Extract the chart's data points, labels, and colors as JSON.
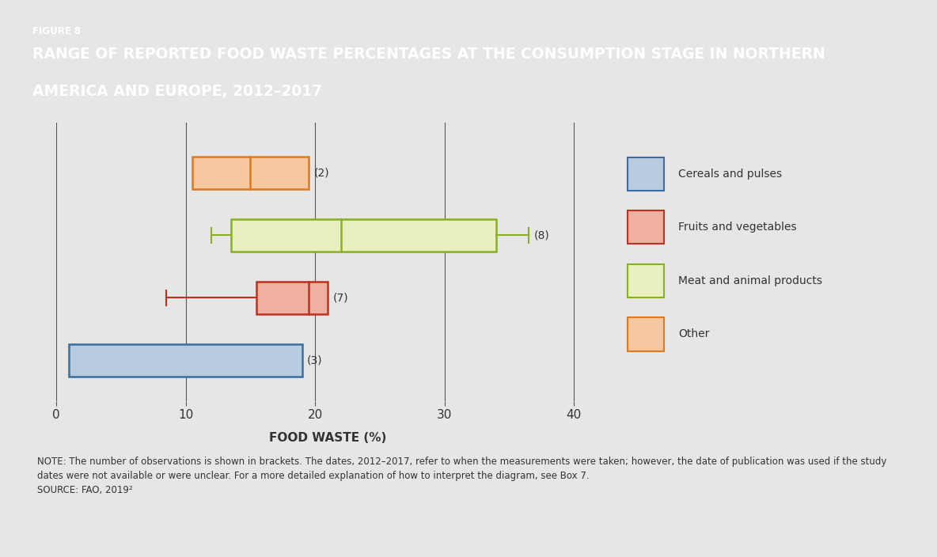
{
  "title_line1": "FIGURE 8",
  "title_line2": "RANGE OF REPORTED FOOD WASTE PERCENTAGES AT THE CONSUMPTION STAGE IN NORTHERN",
  "title_line3": "AMERICA AND EUROPE, 2012–2017",
  "title_bg_color": "#7f7f7f",
  "title_text_color": "#ffffff",
  "bg_color": "#e6e6e6",
  "xlabel": "FOOD WASTE (%)",
  "xlim": [
    0,
    42
  ],
  "xticks": [
    0,
    10,
    20,
    30,
    40
  ],
  "note_text": "NOTE: The number of observations is shown in brackets. The dates, 2012–2017, refer to when the measurements were taken; however, the date of publication was used if the study\ndates were not available or were unclear. For a more detailed explanation of how to interpret the diagram, see Box 7.\nSOURCE: FAO, 2019²",
  "boxes": [
    {
      "label": "Other",
      "y": 4,
      "whisker_min": null,
      "q1": 10.5,
      "median": 15.0,
      "q3": 19.5,
      "whisker_max": null,
      "n": 2,
      "face_color": "#f5c8a0",
      "edge_color": "#e07820",
      "line_color": "#e07820"
    },
    {
      "label": "Meat and animal products",
      "y": 3,
      "whisker_min": 12.0,
      "q1": 13.5,
      "median": 22.0,
      "q3": 34.0,
      "whisker_max": 36.5,
      "n": 8,
      "face_color": "#e8f0c0",
      "edge_color": "#8aaf20",
      "line_color": "#8aaf20"
    },
    {
      "label": "Fruits and vegetables",
      "y": 2,
      "whisker_min": 8.5,
      "q1": 15.5,
      "median": 19.5,
      "q3": 21.0,
      "whisker_max": null,
      "n": 7,
      "face_color": "#f0b0a0",
      "edge_color": "#c03020",
      "line_color": "#c03020"
    },
    {
      "label": "Cereals and pulses",
      "y": 1,
      "whisker_min": null,
      "q1": 1.0,
      "median": null,
      "q3": 19.0,
      "whisker_max": null,
      "n": 3,
      "face_color": "#b8cce0",
      "edge_color": "#3a6e9e",
      "line_color": "#3a6e9e"
    }
  ],
  "legend_items": [
    {
      "label": "Cereals and pulses",
      "face_color": "#b8cce0",
      "edge_color": "#3a6e9e"
    },
    {
      "label": "Fruits and vegetables",
      "face_color": "#f0b0a0",
      "edge_color": "#c03020"
    },
    {
      "label": "Meat and animal products",
      "face_color": "#e8f0c0",
      "edge_color": "#8aaf20"
    },
    {
      "label": "Other",
      "face_color": "#f5c8a0",
      "edge_color": "#e07820"
    }
  ],
  "grid_color": "#555555",
  "grid_linewidth": 0.8
}
